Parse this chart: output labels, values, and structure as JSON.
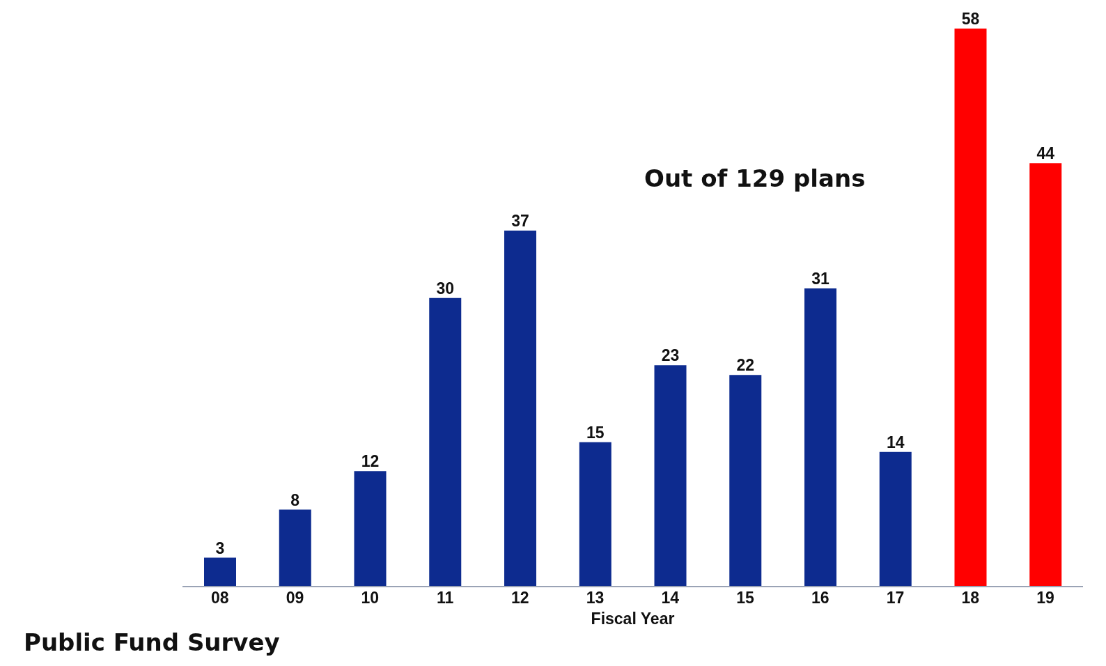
{
  "chart_data": {
    "type": "bar",
    "xlabel": "Fiscal Year",
    "categories": [
      "08",
      "09",
      "10",
      "11",
      "12",
      "13",
      "14",
      "15",
      "16",
      "17",
      "18",
      "19"
    ],
    "values": [
      3,
      8,
      12,
      30,
      37,
      15,
      23,
      22,
      31,
      14,
      58,
      44
    ],
    "colors": [
      "#0d2b8f",
      "#0d2b8f",
      "#0d2b8f",
      "#0d2b8f",
      "#0d2b8f",
      "#0d2b8f",
      "#0d2b8f",
      "#0d2b8f",
      "#0d2b8f",
      "#0d2b8f",
      "#ff0000",
      "#ff0000"
    ],
    "data_labels": true,
    "grid": false,
    "legend": false,
    "annotations": [
      "Out of 129 plans",
      "Public Fund Survey"
    ]
  }
}
